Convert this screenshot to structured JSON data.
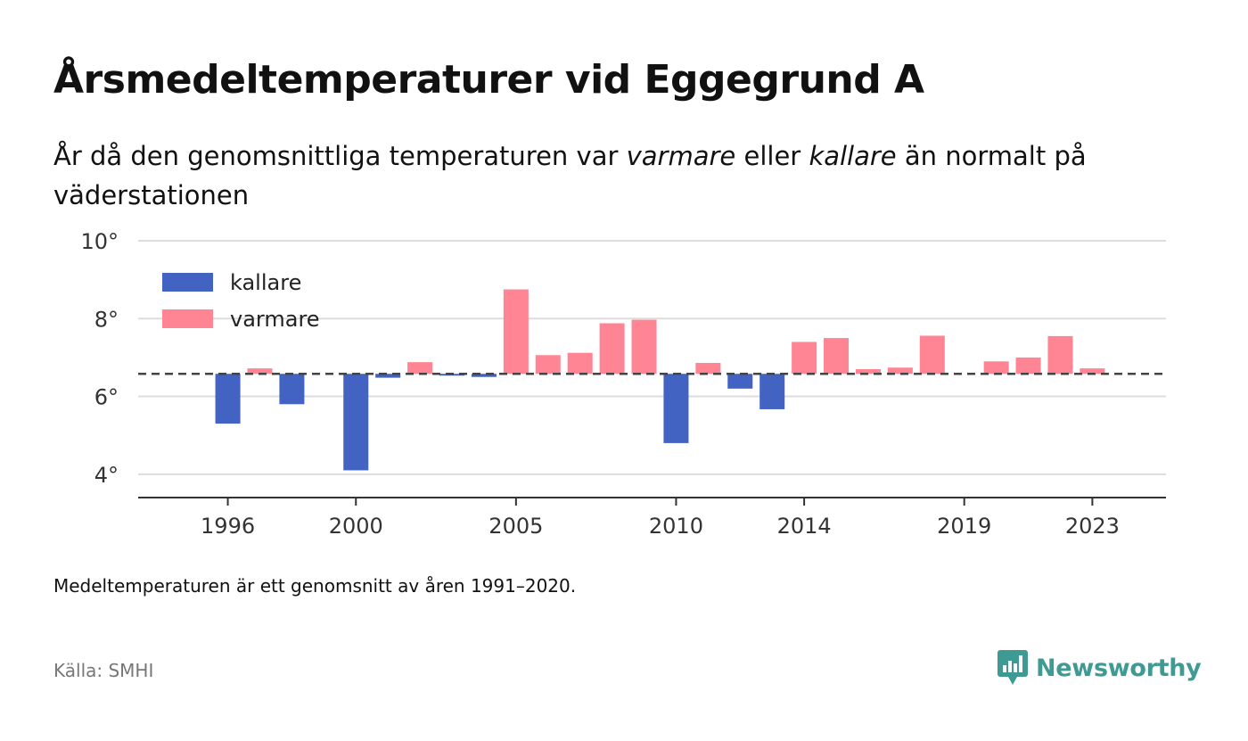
{
  "header": {
    "title": "Årsmedeltemperaturer vid Eggegrund A",
    "subtitle_part1": "År då den genomsnittliga temperaturen var ",
    "subtitle_em1": "varmare",
    "subtitle_part2": " eller ",
    "subtitle_em2": "kallare",
    "subtitle_part3": " än normalt på väderstationen"
  },
  "footer": {
    "note": "Medeltemperaturen är ett genomsnitt av åren 1991–2020.",
    "source": "Källa: SMHI",
    "brand": "Newsworthy"
  },
  "colors": {
    "kallare": "#4263c2",
    "varmare": "#ff8595",
    "brand": "#3e9a93"
  },
  "chart_data": {
    "type": "bar",
    "baseline": 6.58,
    "ylim": [
      3.4,
      10
    ],
    "yticks": [
      4,
      6,
      8,
      10
    ],
    "ytick_labels": [
      "4°",
      "6°",
      "8°",
      "10°"
    ],
    "xlim": [
      1993.2,
      2025.3
    ],
    "xticks": [
      1996,
      2000,
      2005,
      2010,
      2014,
      2019,
      2023
    ],
    "xtick_labels": [
      "1996",
      "2000",
      "2005",
      "2010",
      "2014",
      "2019",
      "2023"
    ],
    "legend": {
      "placement": "top-left",
      "entries": [
        {
          "label": "kallare",
          "color_key": "kallare"
        },
        {
          "label": "varmare",
          "color_key": "varmare"
        }
      ]
    },
    "categories": [
      1996,
      1997,
      1998,
      2000,
      2001,
      2002,
      2003,
      2004,
      2005,
      2006,
      2007,
      2008,
      2009,
      2010,
      2011,
      2012,
      2013,
      2014,
      2015,
      2016,
      2017,
      2018,
      2020,
      2021,
      2022,
      2023
    ],
    "values": [
      5.3,
      6.72,
      5.8,
      4.1,
      6.48,
      6.88,
      6.56,
      6.5,
      8.75,
      7.06,
      7.12,
      7.88,
      7.97,
      4.8,
      6.86,
      6.2,
      5.67,
      7.4,
      7.5,
      6.7,
      6.74,
      7.56,
      6.9,
      7.0,
      7.55,
      6.72
    ]
  }
}
